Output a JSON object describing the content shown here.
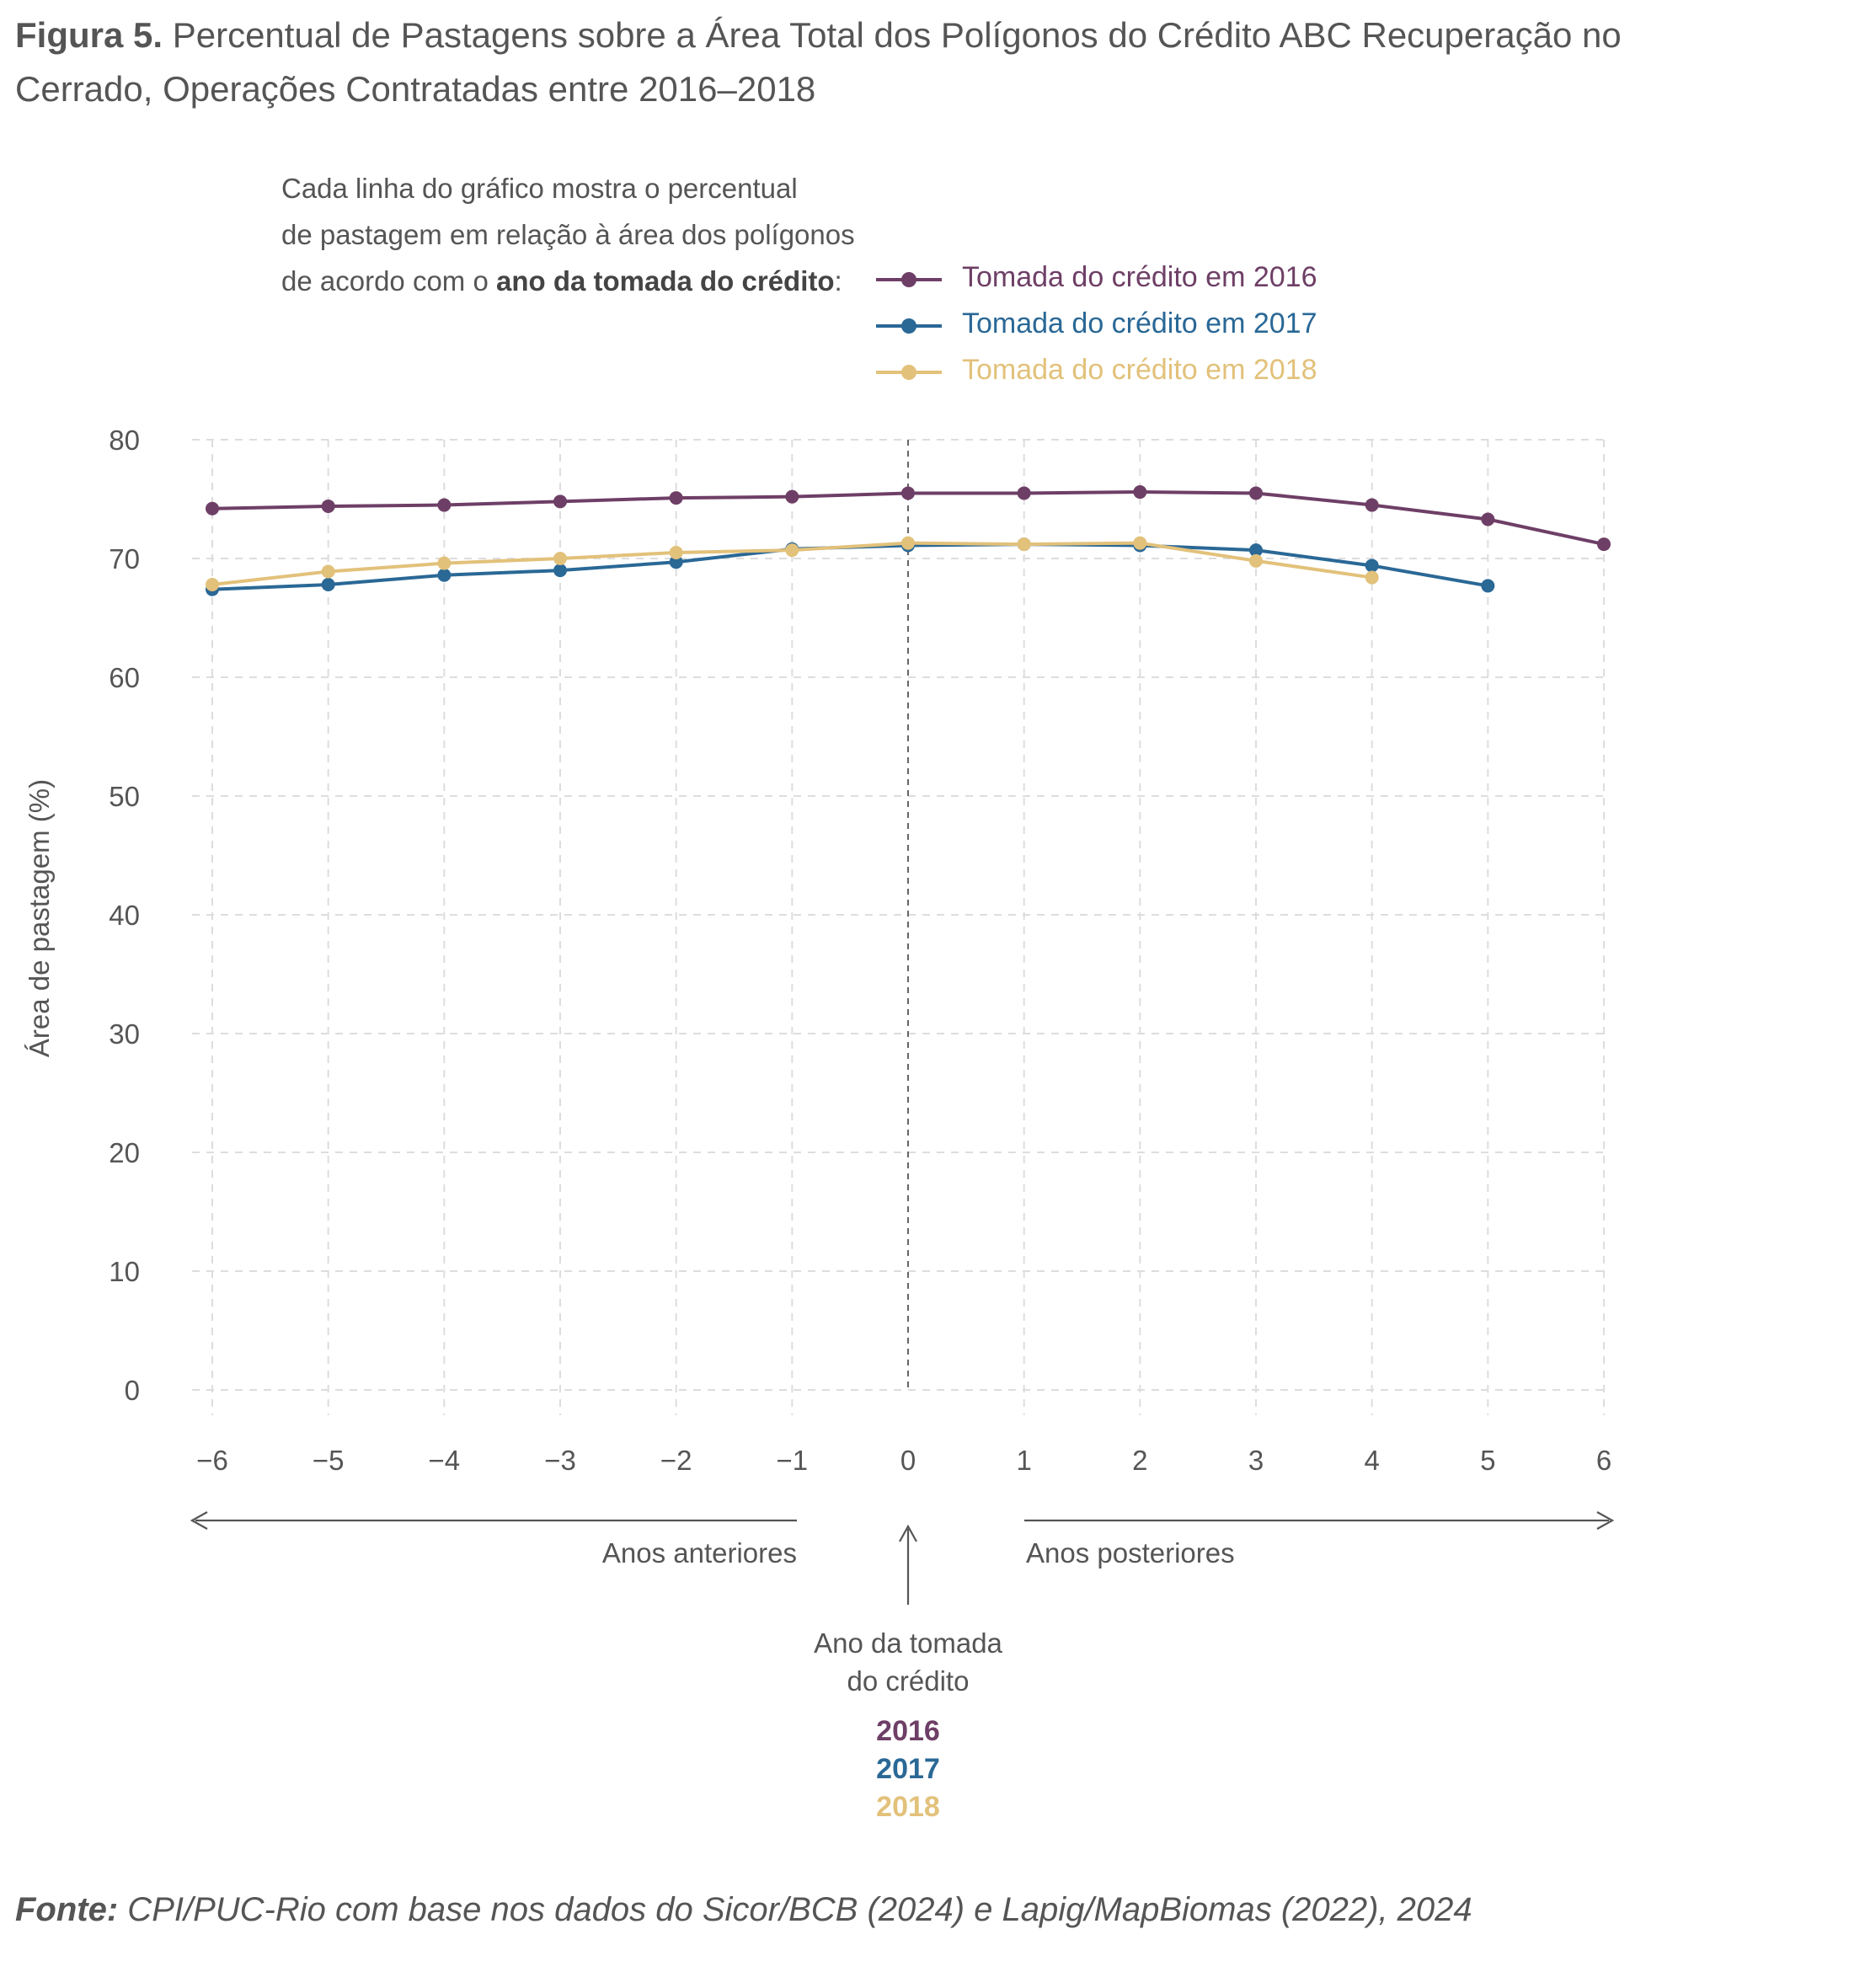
{
  "title": {
    "prefix": "Figura 5.",
    "line1": "Percentual de Pastagens sobre a Área Total dos Polígonos do Crédito ABC Recuperação no",
    "line2": "Cerrado, Operações Contratadas entre 2016–2018"
  },
  "intro": {
    "line1": "Cada linha do gráfico mostra o percentual",
    "line2": "de pastagem em relação à área dos polígonos",
    "line3_pre": "de acordo com o ",
    "line3_bold": "ano da tomada do crédito",
    "line3_post": ":"
  },
  "chart_data": {
    "type": "line",
    "ylabel": "Área de pastagem (%)",
    "xlabel": "",
    "x": [
      -6,
      -5,
      -4,
      -3,
      -2,
      -1,
      0,
      1,
      2,
      3,
      4,
      5,
      6
    ],
    "x_tick_labels": [
      "−6",
      "−5",
      "−4",
      "−3",
      "−2",
      "−1",
      "0",
      "1",
      "2",
      "3",
      "4",
      "5",
      "6"
    ],
    "y_ticks": [
      0,
      10,
      20,
      30,
      40,
      50,
      60,
      70,
      80
    ],
    "ylim": [
      0,
      80
    ],
    "xlim": [
      -6,
      6
    ],
    "grid": true,
    "legend_position": "top-right",
    "reference_line_x": 0,
    "series": [
      {
        "name": "Tomada do crédito em 2016",
        "color": "#6e3f66",
        "x": [
          -6,
          -5,
          -4,
          -3,
          -2,
          -1,
          0,
          1,
          2,
          3,
          4,
          5,
          6
        ],
        "values": [
          74.2,
          74.4,
          74.5,
          74.8,
          75.1,
          75.2,
          75.5,
          75.5,
          75.6,
          75.5,
          74.5,
          73.3,
          71.2
        ]
      },
      {
        "name": "Tomada do crédito em 2017",
        "color": "#2a6896",
        "x": [
          -6,
          -5,
          -4,
          -3,
          -2,
          -1,
          0,
          1,
          2,
          3,
          4,
          5
        ],
        "values": [
          67.4,
          67.8,
          68.6,
          69.0,
          69.7,
          70.8,
          71.1,
          71.2,
          71.1,
          70.7,
          69.4,
          67.7
        ]
      },
      {
        "name": "Tomada do crédito em 2018",
        "color": "#e2c17a",
        "x": [
          -6,
          -5,
          -4,
          -3,
          -2,
          -1,
          0,
          1,
          2,
          3,
          4
        ],
        "values": [
          67.8,
          68.9,
          69.6,
          70.0,
          70.5,
          70.7,
          71.3,
          71.2,
          71.3,
          69.8,
          68.4
        ]
      }
    ],
    "annotations": {
      "anos_anteriores": "Anos anteriores",
      "anos_posteriores": "Anos posteriores",
      "ano_tomada_line1": "Ano da tomada",
      "ano_tomada_line2": "do crédito",
      "years": [
        "2016",
        "2017",
        "2018"
      ]
    }
  },
  "source": {
    "label": "Fonte:",
    "text": " CPI/PUC-Rio com base nos dados do Sicor/BCB (2024) e Lapig/MapBiomas (2022), 2024"
  }
}
